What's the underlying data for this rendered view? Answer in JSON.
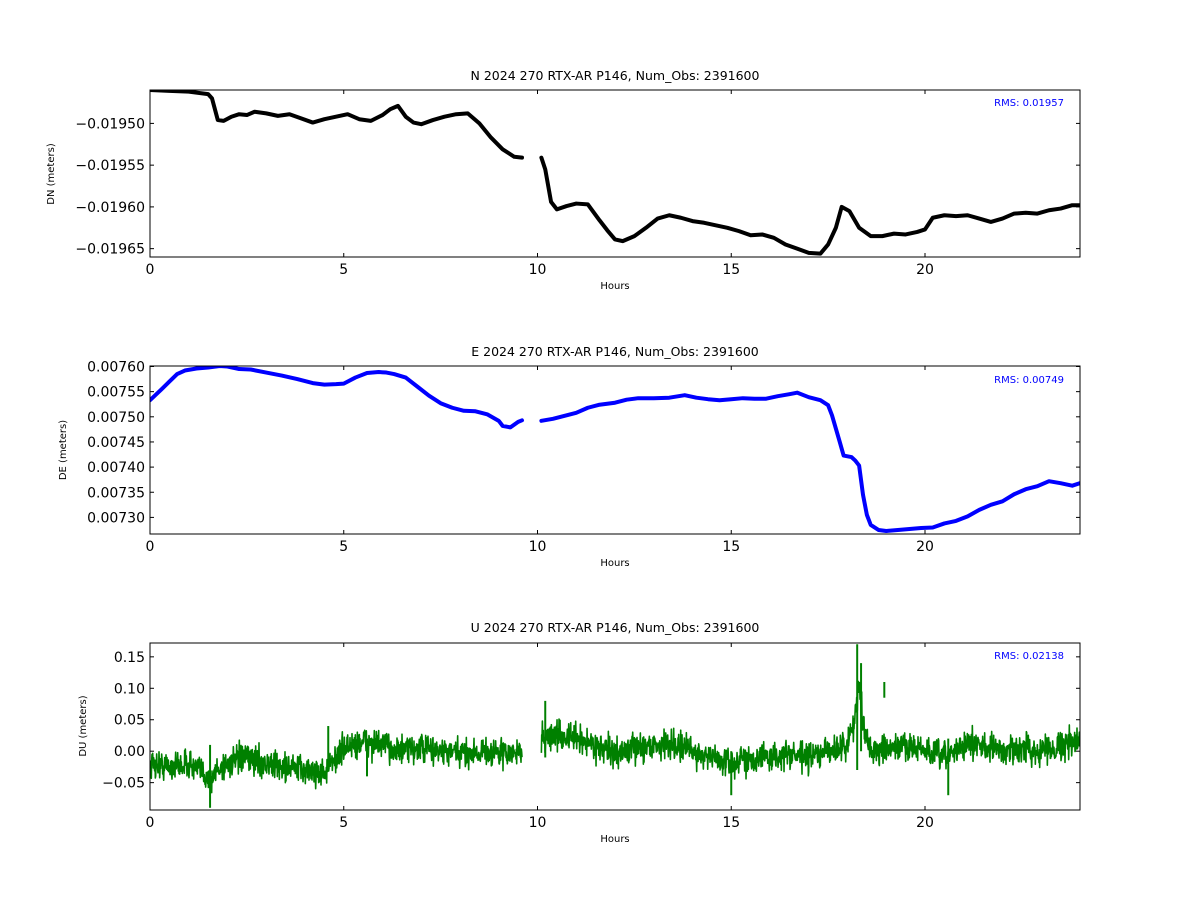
{
  "chart_data": [
    {
      "type": "line",
      "title": "N 2024 270 RTX-AR  P146, Num_Obs: 2391600",
      "xlabel": "Hours",
      "ylabel": "DN (meters)",
      "xlim": [
        0,
        24
      ],
      "ylim": [
        -0.01966,
        -0.01946
      ],
      "xticks": [
        0,
        5,
        10,
        15,
        20
      ],
      "xtick_labels": [
        "0",
        "5",
        "10",
        "15",
        "20"
      ],
      "yticks": [
        -0.0195,
        -0.01955,
        -0.0196,
        -0.01965
      ],
      "ytick_labels": [
        "−0.01950",
        "−0.01955",
        "−0.01960",
        "−0.01965"
      ],
      "annotation": "RMS:  0.01957",
      "grid": false,
      "series": [
        {
          "color": "#000000",
          "segments": [
            {
              "x": [
                0,
                0.5,
                1.0,
                1.5,
                1.6,
                1.75,
                1.9,
                2.1,
                2.3,
                2.5,
                2.7,
                3.0,
                3.3,
                3.6,
                3.9,
                4.2,
                4.5,
                4.8,
                5.1,
                5.4,
                5.7,
                6.0,
                6.2,
                6.4,
                6.6,
                6.8,
                7.0,
                7.3,
                7.6,
                7.9,
                8.2,
                8.5,
                8.8,
                9.1,
                9.4,
                9.6
              ],
              "y": [
                -0.01946,
                -0.019461,
                -0.019462,
                -0.019465,
                -0.01947,
                -0.019496,
                -0.019497,
                -0.019492,
                -0.019489,
                -0.01949,
                -0.019486,
                -0.019488,
                -0.019491,
                -0.019489,
                -0.019494,
                -0.019499,
                -0.019495,
                -0.019492,
                -0.019489,
                -0.019495,
                -0.019497,
                -0.01949,
                -0.019483,
                -0.019479,
                -0.019492,
                -0.019499,
                -0.019501,
                -0.019496,
                -0.019492,
                -0.019489,
                -0.019488,
                -0.0195,
                -0.019517,
                -0.019531,
                -0.01954,
                -0.019541
              ]
            },
            {
              "x": [
                10.1,
                10.2,
                10.35,
                10.5,
                10.75,
                11.0,
                11.3,
                11.6,
                11.8,
                12.0,
                12.2,
                12.5,
                12.8,
                13.1,
                13.4,
                13.7,
                14.0,
                14.3,
                14.6,
                14.9,
                15.2,
                15.5,
                15.8,
                16.1,
                16.4,
                16.7,
                17.0,
                17.3,
                17.5,
                17.7,
                17.85,
                18.05,
                18.3,
                18.6,
                18.9,
                19.2,
                19.5,
                19.8,
                20.0,
                20.2,
                20.5,
                20.8,
                21.1,
                21.4,
                21.7,
                22.0,
                22.3,
                22.6,
                22.9,
                23.2,
                23.5,
                23.8,
                24.0
              ],
              "y": [
                -0.019541,
                -0.019555,
                -0.019594,
                -0.019603,
                -0.019599,
                -0.019596,
                -0.019597,
                -0.019616,
                -0.019628,
                -0.019639,
                -0.019641,
                -0.019635,
                -0.019625,
                -0.019614,
                -0.01961,
                -0.019613,
                -0.019617,
                -0.019619,
                -0.019622,
                -0.019625,
                -0.019629,
                -0.019634,
                -0.019633,
                -0.019637,
                -0.019645,
                -0.01965,
                -0.019655,
                -0.019656,
                -0.019645,
                -0.019625,
                -0.0196,
                -0.019605,
                -0.019625,
                -0.019635,
                -0.019635,
                -0.019632,
                -0.019633,
                -0.01963,
                -0.019627,
                -0.019613,
                -0.01961,
                -0.019611,
                -0.01961,
                -0.019614,
                -0.019618,
                -0.019614,
                -0.019608,
                -0.019607,
                -0.019608,
                -0.019604,
                -0.019602,
                -0.019598,
                -0.019598
              ]
            }
          ]
        }
      ]
    },
    {
      "type": "line",
      "title": "E 2024 270 RTX-AR  P146, Num_Obs: 2391600",
      "xlabel": "Hours",
      "ylabel": "DE (meters)",
      "xlim": [
        0,
        24
      ],
      "ylim": [
        0.007267,
        0.007601
      ],
      "xticks": [
        0,
        5,
        10,
        15,
        20
      ],
      "xtick_labels": [
        "0",
        "5",
        "10",
        "15",
        "20"
      ],
      "yticks": [
        0.0076,
        0.00755,
        0.0075,
        0.00745,
        0.0074,
        0.00735,
        0.0073
      ],
      "ytick_labels": [
        "0.00760",
        "0.00755",
        "0.00750",
        "0.00745",
        "0.00740",
        "0.00735",
        "0.00730"
      ],
      "annotation": "RMS:  0.00749",
      "grid": false,
      "series": [
        {
          "color": "#0000ff",
          "segments": [
            {
              "x": [
                0,
                0.3,
                0.5,
                0.7,
                0.9,
                1.2,
                1.5,
                1.8,
                2.0,
                2.3,
                2.6,
                3.0,
                3.4,
                3.8,
                4.2,
                4.5,
                4.8,
                5.0,
                5.3,
                5.6,
                5.9,
                6.1,
                6.3,
                6.6,
                6.9,
                7.2,
                7.5,
                7.8,
                8.1,
                8.4,
                8.7,
                9.0,
                9.1,
                9.3,
                9.5,
                9.6
              ],
              "y": [
                0.007533,
                0.007555,
                0.00757,
                0.007585,
                0.007592,
                0.007596,
                0.007598,
                0.007601,
                0.0076,
                0.007595,
                0.007594,
                0.007588,
                0.007582,
                0.007575,
                0.007567,
                0.007564,
                0.007565,
                0.007566,
                0.007578,
                0.007587,
                0.007589,
                0.007588,
                0.007585,
                0.007578,
                0.00756,
                0.007542,
                0.007527,
                0.007518,
                0.007512,
                0.007511,
                0.007505,
                0.007492,
                0.007482,
                0.007479,
                0.00749,
                0.007493
              ]
            },
            {
              "x": [
                10.1,
                10.4,
                10.7,
                11.0,
                11.3,
                11.6,
                12.0,
                12.3,
                12.6,
                13.0,
                13.4,
                13.8,
                14.1,
                14.4,
                14.7,
                15.0,
                15.3,
                15.6,
                15.9,
                16.2,
                16.5,
                16.7,
                17.0,
                17.3,
                17.5,
                17.6,
                17.8,
                17.9,
                18.1,
                18.2,
                18.3,
                18.4,
                18.5,
                18.6,
                18.8,
                19.0,
                19.3,
                19.6,
                19.9,
                20.2,
                20.5,
                20.8,
                21.1,
                21.4,
                21.7,
                22.0,
                22.3,
                22.6,
                22.9,
                23.2,
                23.5,
                23.8,
                24.0
              ],
              "y": [
                0.007492,
                0.007496,
                0.007502,
                0.007508,
                0.007518,
                0.007524,
                0.007528,
                0.007534,
                0.007537,
                0.007537,
                0.007538,
                0.007543,
                0.007538,
                0.007535,
                0.007533,
                0.007535,
                0.007537,
                0.007536,
                0.007536,
                0.007541,
                0.007545,
                0.007548,
                0.007539,
                0.007533,
                0.007523,
                0.007503,
                0.00745,
                0.007423,
                0.00742,
                0.007413,
                0.007403,
                0.007345,
                0.007305,
                0.007285,
                0.007275,
                0.007273,
                0.007275,
                0.007277,
                0.007279,
                0.00728,
                0.007288,
                0.007293,
                0.007302,
                0.007315,
                0.007325,
                0.007332,
                0.007346,
                0.007356,
                0.007362,
                0.007372,
                0.007368,
                0.007363,
                0.007368
              ]
            }
          ]
        }
      ]
    },
    {
      "type": "line",
      "title": "U 2024 270 RTX-AR  P146, Num_Obs: 2391600",
      "xlabel": "Hours",
      "ylabel": "DU (meters)",
      "xlim": [
        0,
        24
      ],
      "ylim": [
        -0.0935,
        0.172
      ],
      "xticks": [
        0,
        5,
        10,
        15,
        20
      ],
      "xtick_labels": [
        "0",
        "5",
        "10",
        "15",
        "20"
      ],
      "yticks": [
        0.15,
        0.1,
        0.05,
        0.0,
        -0.05
      ],
      "ytick_labels": [
        "0.15",
        "0.10",
        "0.05",
        "0.00",
        "−0.05"
      ],
      "annotation": "RMS:  0.02138",
      "grid": false,
      "series": [
        {
          "color": "#008000",
          "segments": [
            {
              "x": [
                0,
                0.5,
                1.0,
                1.5,
                1.6,
                1.7,
                2.0,
                2.5,
                3.0,
                3.5,
                4.0,
                4.5,
                4.8,
                5.0,
                5.5,
                6.0,
                6.5,
                7.0,
                7.5,
                8.0,
                8.5,
                9.0,
                9.3,
                9.6
              ],
              "y": [
                -0.02,
                -0.025,
                -0.02,
                -0.04,
                -0.05,
                -0.03,
                -0.02,
                -0.01,
                -0.02,
                -0.025,
                -0.03,
                -0.035,
                -0.01,
                0.005,
                0.015,
                0.01,
                0.0,
                0.005,
                0.0,
                -0.005,
                0.0,
                -0.002,
                -0.005,
                0.0
              ]
            },
            {
              "x": [
                10.1,
                10.5,
                11.0,
                11.5,
                12.0,
                12.5,
                13.0,
                13.5,
                14.0,
                14.5,
                15.0,
                15.5,
                16.0,
                16.5,
                17.0,
                17.5,
                18.0,
                18.2,
                18.3,
                18.4,
                18.6,
                19.0,
                19.5,
                20.0,
                20.5,
                21.0,
                21.5,
                22.0,
                22.5,
                23.0,
                23.5,
                24.0
              ],
              "y": [
                0.02,
                0.025,
                0.02,
                0.01,
                -0.005,
                0.005,
                0.01,
                0.012,
                0.0,
                -0.01,
                -0.02,
                -0.01,
                -0.01,
                -0.005,
                -0.01,
                0.0,
                0.01,
                0.06,
                0.1,
                0.05,
                0.0,
                0.0,
                0.01,
                0.0,
                -0.01,
                0.01,
                0.01,
                0.0,
                0.005,
                0.0,
                0.01,
                0.015
              ]
            }
          ],
          "spikes": [
            {
              "x": 1.55,
              "y1": -0.09,
              "y2": 0.01
            },
            {
              "x": 4.6,
              "y1": -0.02,
              "y2": 0.04
            },
            {
              "x": 5.6,
              "y1": -0.04,
              "y2": 0.02
            },
            {
              "x": 10.2,
              "y1": -0.01,
              "y2": 0.08
            },
            {
              "x": 15.0,
              "y1": -0.07,
              "y2": 0.0
            },
            {
              "x": 18.25,
              "y1": -0.03,
              "y2": 0.17
            },
            {
              "x": 18.35,
              "y1": 0.0,
              "y2": 0.14
            },
            {
              "x": 18.95,
              "y1": 0.085,
              "y2": 0.11
            },
            {
              "x": 20.6,
              "y1": -0.07,
              "y2": 0.02
            }
          ]
        }
      ]
    }
  ]
}
